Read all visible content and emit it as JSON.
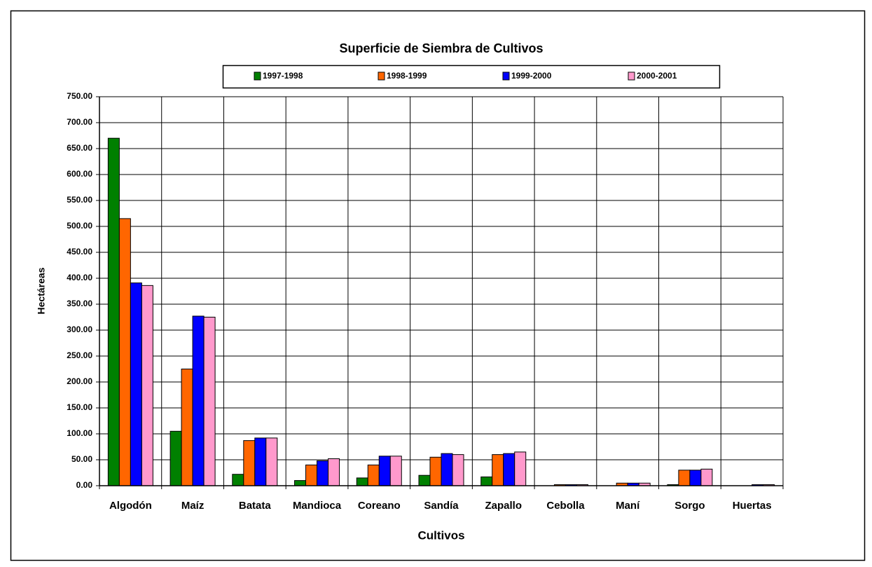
{
  "chart_data": {
    "type": "bar",
    "title": "Superficie de Siembra de Cultivos",
    "x_label": "Cultivos",
    "y_label": "Hectáreas",
    "categories": [
      "Algodón",
      "Maíz",
      "Batata",
      "Mandioca",
      "Coreano",
      "Sandía",
      "Zapallo",
      "Cebolla",
      "Maní",
      "Sorgo",
      "Huertas"
    ],
    "series": [
      {
        "name": "1997-1998",
        "color": "#008000",
        "values": [
          670,
          105,
          22,
          10,
          15,
          20,
          17,
          0,
          0,
          2,
          0
        ]
      },
      {
        "name": "1998-1999",
        "color": "#ff6600",
        "values": [
          515,
          225,
          87,
          40,
          40,
          55,
          60,
          2,
          5,
          30,
          0
        ]
      },
      {
        "name": "1999-2000",
        "color": "#0000ff",
        "values": [
          391,
          327,
          92,
          48,
          57,
          62,
          62,
          2,
          5,
          30,
          2
        ]
      },
      {
        "name": "2000-2001",
        "color": "#ff99cc",
        "values": [
          386,
          325,
          92,
          52,
          57,
          60,
          65,
          2,
          5,
          32,
          2
        ]
      }
    ],
    "ylim": [
      0,
      750
    ],
    "yticks": [
      {
        "value": 0,
        "label": "0.00"
      },
      {
        "value": 50,
        "label": "50.00"
      },
      {
        "value": 100,
        "label": "100.00"
      },
      {
        "value": 150,
        "label": "150.00"
      },
      {
        "value": 200,
        "label": "200.00"
      },
      {
        "value": 250,
        "label": "250.00"
      },
      {
        "value": 300,
        "label": "300.00"
      },
      {
        "value": 350,
        "label": "350.00"
      },
      {
        "value": 400,
        "label": "400.00"
      },
      {
        "value": 450,
        "label": "450.00"
      },
      {
        "value": 500,
        "label": "500.00"
      },
      {
        "value": 550,
        "label": "550.00"
      },
      {
        "value": 600,
        "label": "600.00"
      },
      {
        "value": 650,
        "label": "650.00"
      },
      {
        "value": 700,
        "label": "700.00"
      },
      {
        "value": 750,
        "label": "750.00"
      }
    ],
    "grid": true,
    "legend": "top"
  }
}
